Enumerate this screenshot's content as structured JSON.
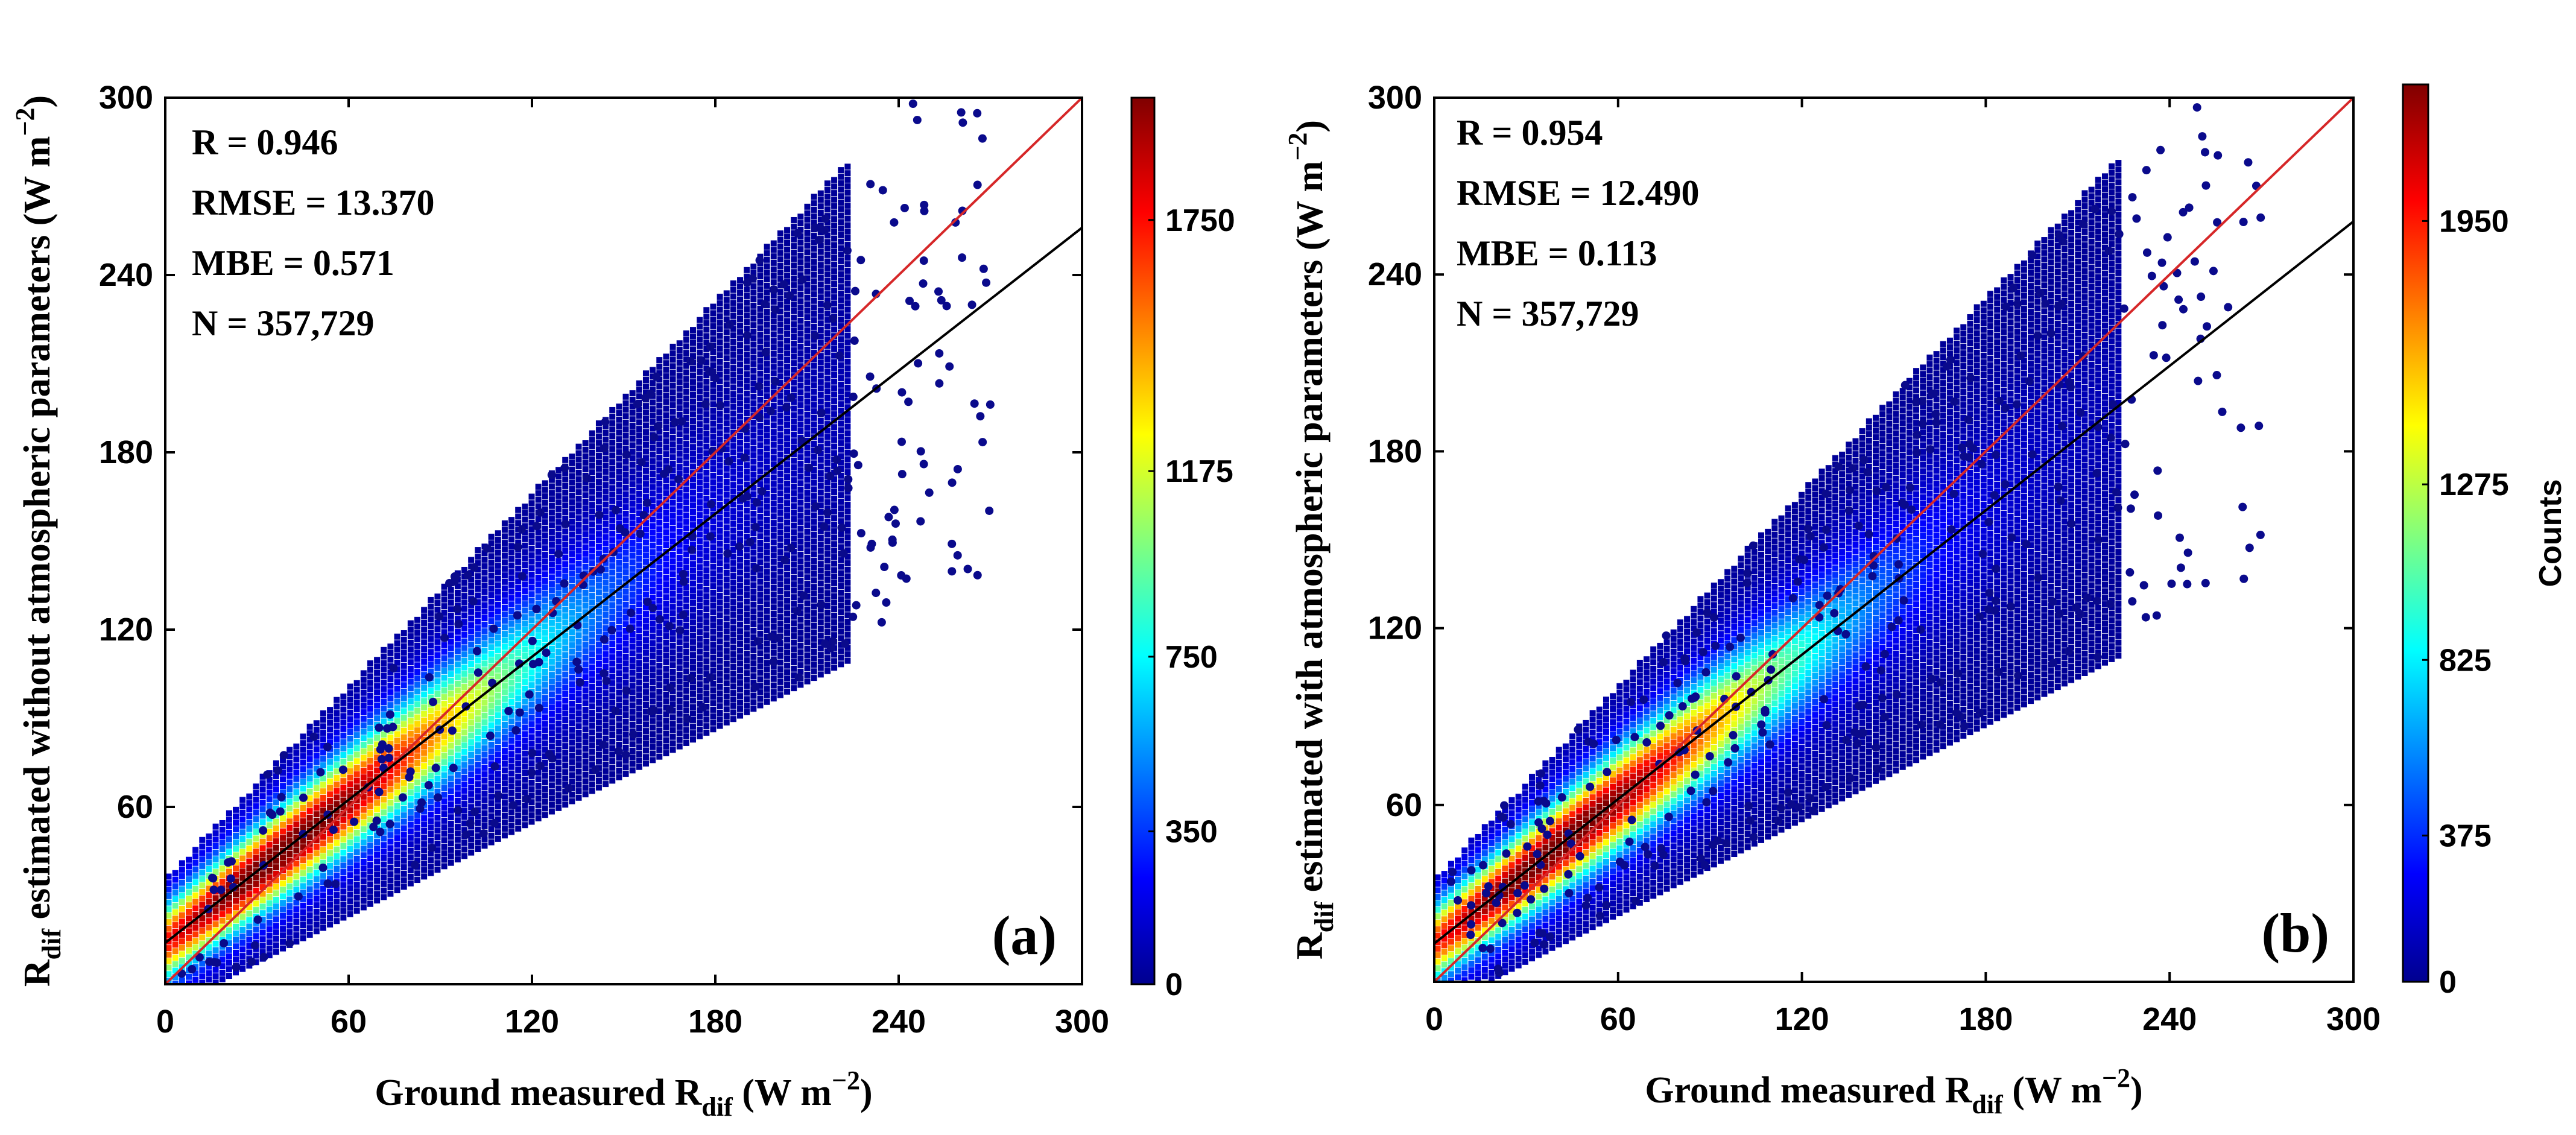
{
  "figure": {
    "colormap": [
      "#00008f",
      "#0000ff",
      "#00ffff",
      "#ffff00",
      "#ff0000",
      "#800000"
    ]
  },
  "chart_data": [
    {
      "type": "scatter",
      "density_colored": true,
      "panel_label": "(a)",
      "xlabel": "Ground measured R",
      "xlabel_sub": "dif",
      "xlabel_units": " (W m",
      "xlabel_sup": "−2",
      "xlabel_close": ")",
      "ylabel": "R",
      "ylabel_sub": "dif",
      "ylabel_text": " estimated without atmospheric parameters (W m",
      "ylabel_sup": "−2",
      "ylabel_close": ")",
      "xlim": [
        0,
        300
      ],
      "ylim": [
        0,
        300
      ],
      "x_ticks": [
        0,
        60,
        120,
        180,
        240,
        300
      ],
      "y_ticks": [
        60,
        120,
        180,
        240,
        300
      ],
      "stats": [
        "R = 0.946",
        "RMSE = 13.370",
        "MBE = 0.571",
        "N = 357,729"
      ],
      "one_to_one_line": {
        "x": [
          0,
          300
        ],
        "y": [
          0,
          300
        ]
      },
      "fit_line": {
        "x": [
          0,
          300
        ],
        "y": [
          14,
          256
        ]
      },
      "density_ridge": {
        "x_center": 40,
        "y_center": 38,
        "slope": 0.82
      },
      "colorbar": {
        "label": "",
        "ticks": [
          0,
          350,
          750,
          1175,
          1750
        ],
        "range": [
          0,
          2030
        ]
      },
      "seed": 11
    },
    {
      "type": "scatter",
      "density_colored": true,
      "panel_label": "(b)",
      "xlabel": "Ground measured R",
      "xlabel_sub": "dif",
      "xlabel_units": " (W m",
      "xlabel_sup": "−2",
      "xlabel_close": ")",
      "ylabel": "R",
      "ylabel_sub": "dif",
      "ylabel_text": " estimated with atmospheric parameters (W m",
      "ylabel_sup": "−2",
      "ylabel_close": ")",
      "xlim": [
        0,
        300
      ],
      "ylim": [
        0,
        300
      ],
      "x_ticks": [
        0,
        60,
        120,
        180,
        240,
        300
      ],
      "y_ticks": [
        60,
        120,
        180,
        240,
        300
      ],
      "stats": [
        "R = 0.954",
        "RMSE = 12.490",
        "MBE = 0.113",
        "N = 357,729"
      ],
      "one_to_one_line": {
        "x": [
          0,
          300
        ],
        "y": [
          0,
          300
        ]
      },
      "fit_line": {
        "x": [
          0,
          300
        ],
        "y": [
          13,
          258
        ]
      },
      "density_ridge": {
        "x_center": 42,
        "y_center": 42,
        "slope": 0.86
      },
      "colorbar": {
        "label": "Counts",
        "ticks": [
          0,
          375,
          825,
          1275,
          1950
        ],
        "range": [
          0,
          2300
        ]
      },
      "seed": 23
    }
  ]
}
